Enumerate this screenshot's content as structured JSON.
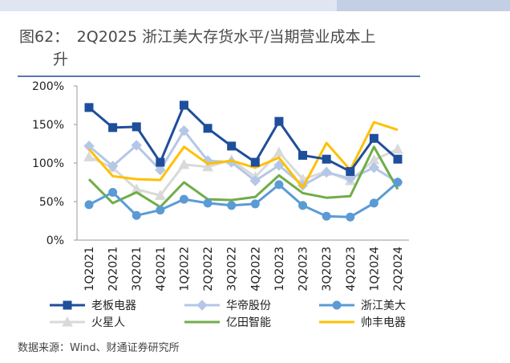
{
  "chart_data": {
    "type": "line",
    "title": "图62：　2Q2025 浙江美大存货水平/当期营业成本上升",
    "source": "数据来源：Wind、财通证券研究所",
    "categories": [
      "1Q2021",
      "2Q2021",
      "3Q2021",
      "4Q2021",
      "1Q2022",
      "2Q2022",
      "3Q2022",
      "4Q2022",
      "1Q2023",
      "2Q2023",
      "3Q2023",
      "4Q2023",
      "1Q2024",
      "2Q2024"
    ],
    "ylim": [
      0,
      200
    ],
    "yticks": [
      {
        "value": 0,
        "label": "0%"
      },
      {
        "value": 50,
        "label": "50%"
      },
      {
        "value": 100,
        "label": "100%"
      },
      {
        "value": 150,
        "label": "150%"
      },
      {
        "value": 200,
        "label": "200%"
      }
    ],
    "series": [
      {
        "name": "老板电器",
        "color": "#1f4e9a",
        "marker": "square",
        "values": [
          172,
          146,
          147,
          101,
          175,
          145,
          122,
          101,
          154,
          110,
          105,
          89,
          132,
          105
        ]
      },
      {
        "name": "华帝股份",
        "color": "#b4c7e7",
        "marker": "diamond",
        "values": [
          122,
          96,
          123,
          91,
          142,
          103,
          101,
          77,
          97,
          71,
          88,
          80,
          94,
          75
        ]
      },
      {
        "name": "浙江美大",
        "color": "#5b9bd5",
        "marker": "circle",
        "values": [
          46,
          62,
          32,
          39,
          53,
          48,
          45,
          47,
          72,
          45,
          31,
          30,
          48,
          75
        ]
      },
      {
        "name": "火星人",
        "color": "#d9d9d9",
        "marker": "triangle",
        "values": [
          108,
          94,
          66,
          58,
          98,
          95,
          104,
          82,
          114,
          79,
          89,
          77,
          104,
          118
        ]
      },
      {
        "name": "亿田智能",
        "color": "#70ad47",
        "marker": "none",
        "values": [
          79,
          48,
          62,
          43,
          75,
          53,
          52,
          56,
          84,
          61,
          55,
          57,
          121,
          66
        ]
      },
      {
        "name": "帅丰电器",
        "color": "#ffc000",
        "marker": "none",
        "values": [
          118,
          83,
          79,
          78,
          121,
          99,
          103,
          94,
          107,
          68,
          126,
          91,
          153,
          143
        ]
      }
    ]
  }
}
